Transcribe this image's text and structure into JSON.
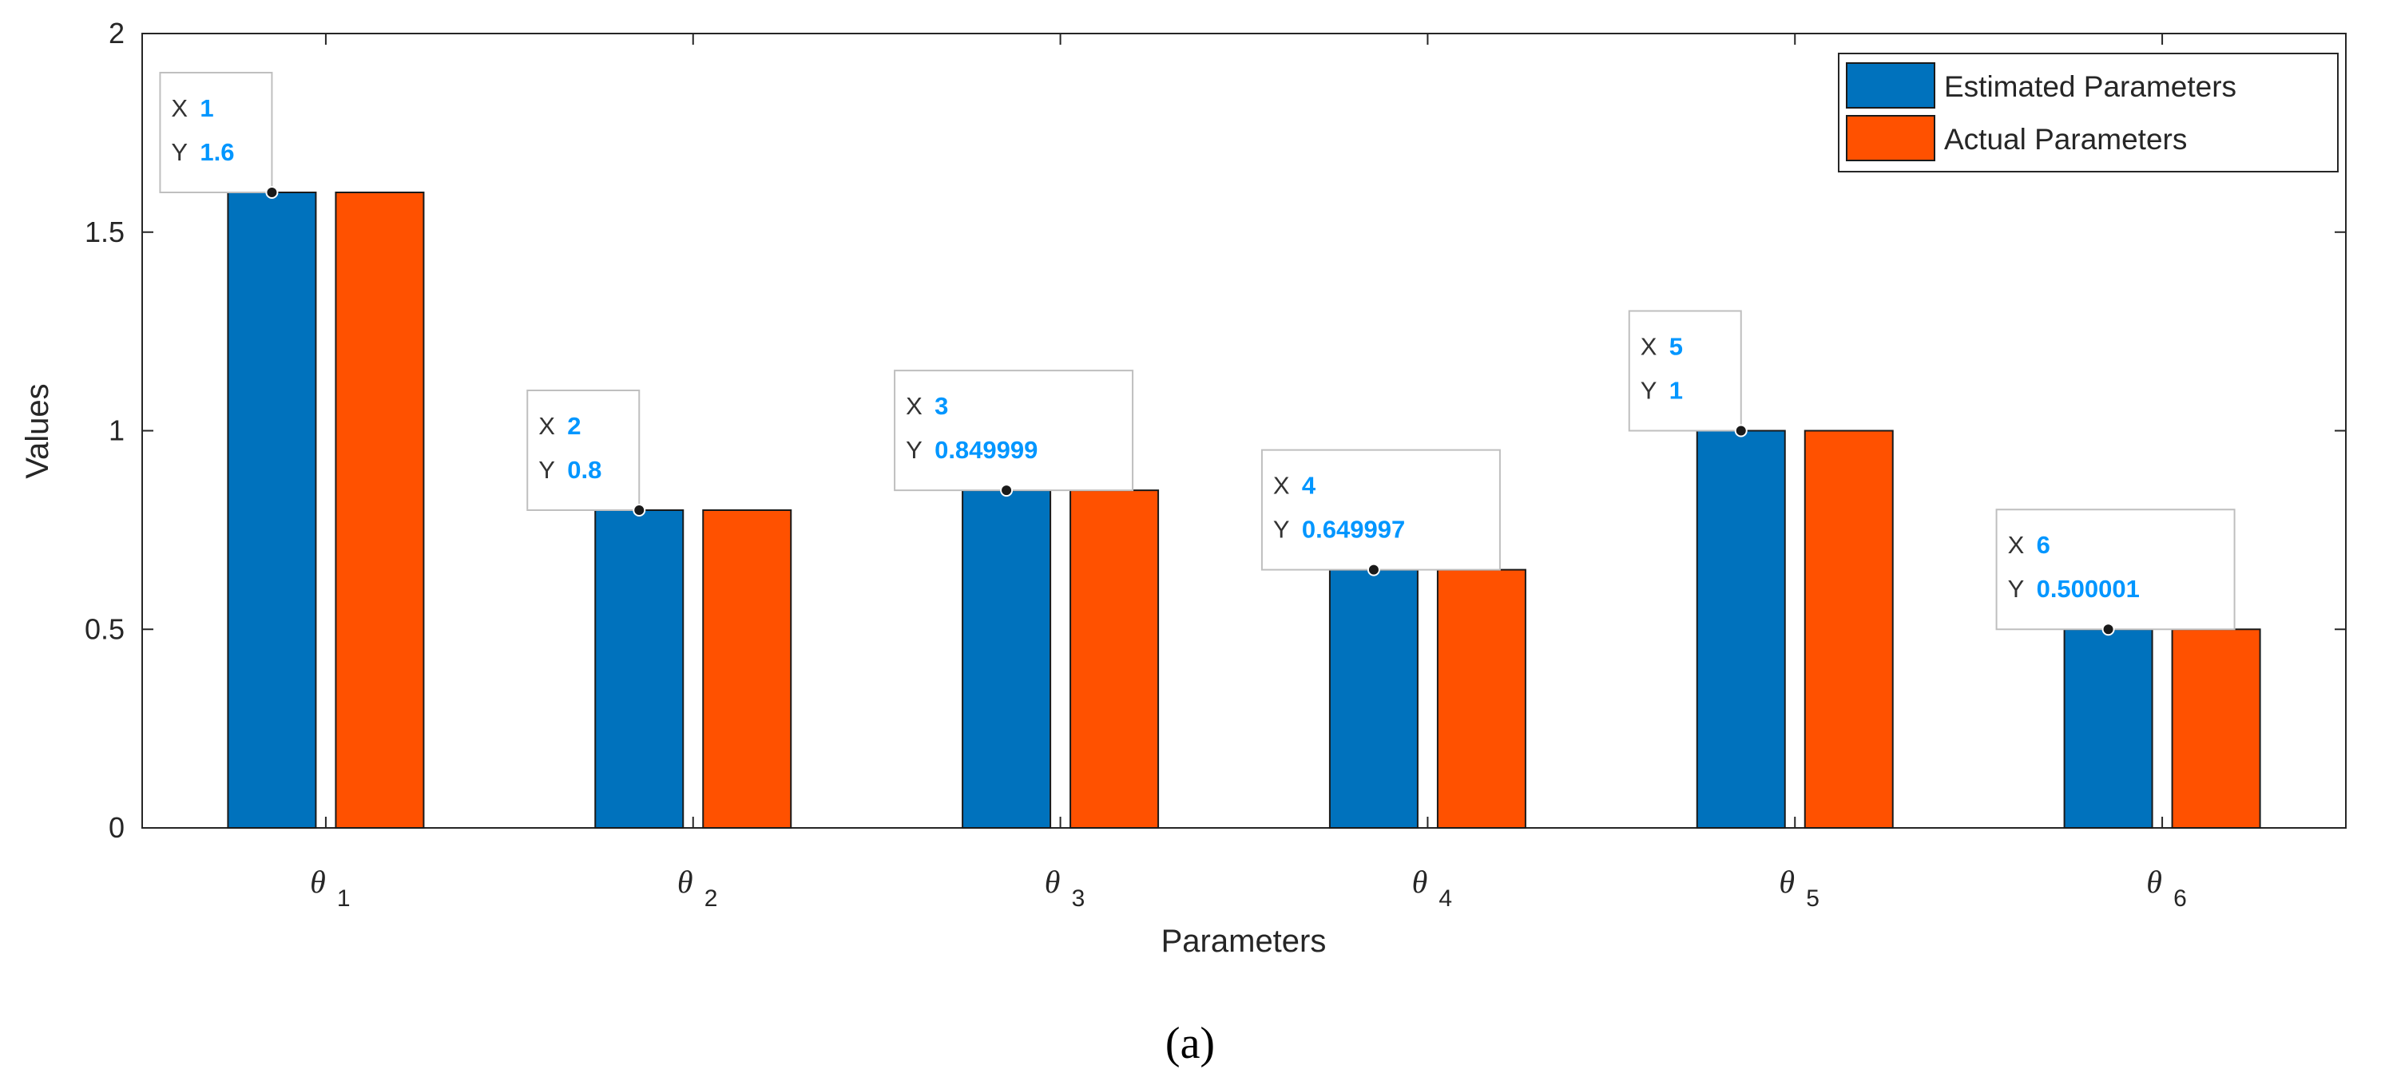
{
  "chart_data": {
    "type": "bar",
    "categories": [
      {
        "symbol": "θ",
        "sub": "1"
      },
      {
        "symbol": "θ",
        "sub": "2"
      },
      {
        "symbol": "θ",
        "sub": "3"
      },
      {
        "symbol": "θ",
        "sub": "4"
      },
      {
        "symbol": "θ",
        "sub": "5"
      },
      {
        "symbol": "θ",
        "sub": "6"
      }
    ],
    "series": [
      {
        "name": "Estimated Parameters",
        "color": "#0072bd",
        "values": [
          1.6,
          0.8,
          0.849999,
          0.649997,
          1.0,
          0.500001
        ]
      },
      {
        "name": "Actual Parameters",
        "color": "#ff5100",
        "values": [
          1.6,
          0.8,
          0.85,
          0.65,
          1.0,
          0.5
        ]
      }
    ],
    "xlabel": "Parameters",
    "ylabel": "Values",
    "ylim": [
      0,
      2
    ],
    "yticks": [
      "0",
      "0.5",
      "1",
      "1.5",
      "2"
    ],
    "legend_position": "top-right",
    "datatips": [
      {
        "x_label": "X",
        "x": "1",
        "y_label": "Y",
        "y": "1.6"
      },
      {
        "x_label": "X",
        "x": "2",
        "y_label": "Y",
        "y": "0.8"
      },
      {
        "x_label": "X",
        "x": "3",
        "y_label": "Y",
        "y": "0.849999"
      },
      {
        "x_label": "X",
        "x": "4",
        "y_label": "Y",
        "y": "0.649997"
      },
      {
        "x_label": "X",
        "x": "5",
        "y_label": "Y",
        "y": "1"
      },
      {
        "x_label": "X",
        "x": "6",
        "y_label": "Y",
        "y": "0.500001"
      }
    ]
  },
  "caption": "(a)"
}
